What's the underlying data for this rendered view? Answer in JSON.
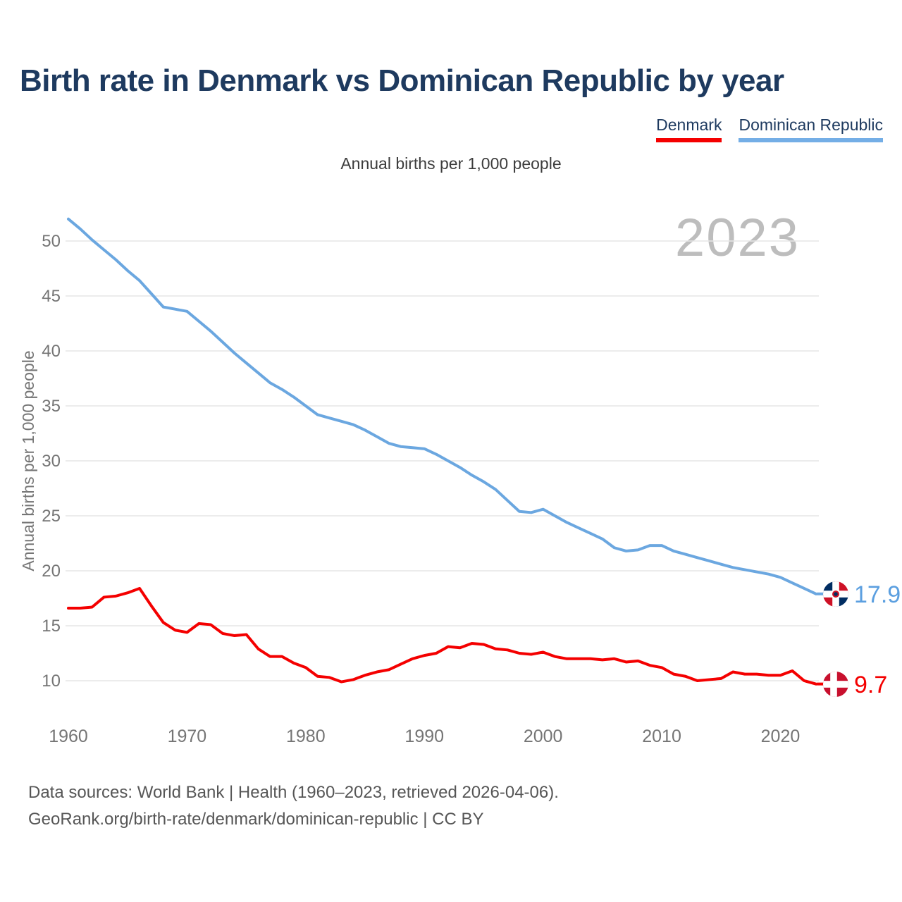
{
  "title": "Birth rate in Denmark vs Dominican Republic by year",
  "subtitle": "Annual births per 1,000 people",
  "watermark": "2023",
  "legend": {
    "denmark_label": "Denmark",
    "dominican_label": "Dominican Republic",
    "denmark_color": "#f40000",
    "dominican_color": "#74aee6"
  },
  "end_labels": {
    "dominican_value": "17.9",
    "denmark_value": "9.7",
    "dominican_color": "#5b9fe0",
    "denmark_color": "#f40000"
  },
  "footer": {
    "line1": "Data sources: World Bank | Health (1960–2023, retrieved 2026-04-06).",
    "line2": "GeoRank.org/birth-rate/denmark/dominican-republic | CC BY"
  },
  "chart_data": {
    "type": "line",
    "title": "Birth rate in Denmark vs Dominican Republic by year",
    "ylabel": "Annual births per 1,000 people",
    "xlabel": "",
    "grid": "horizontal-only",
    "legend_position": "top-right",
    "ylim": [
      8,
      53
    ],
    "xlim": [
      1960,
      2023
    ],
    "yticks": [
      10,
      15,
      20,
      25,
      30,
      35,
      40,
      45,
      50
    ],
    "xticks": [
      1960,
      1970,
      1980,
      1990,
      2000,
      2010,
      2020
    ],
    "gridline_color": "#e6e6e6",
    "tick_color": "#757575",
    "x": [
      1960,
      1961,
      1962,
      1963,
      1964,
      1965,
      1966,
      1967,
      1968,
      1969,
      1970,
      1971,
      1972,
      1973,
      1974,
      1975,
      1976,
      1977,
      1978,
      1979,
      1980,
      1981,
      1982,
      1983,
      1984,
      1985,
      1986,
      1987,
      1988,
      1989,
      1990,
      1991,
      1992,
      1993,
      1994,
      1995,
      1996,
      1997,
      1998,
      1999,
      2000,
      2001,
      2002,
      2003,
      2004,
      2005,
      2006,
      2007,
      2008,
      2009,
      2010,
      2011,
      2012,
      2013,
      2014,
      2015,
      2016,
      2017,
      2018,
      2019,
      2020,
      2021,
      2022,
      2023
    ],
    "series": [
      {
        "name": "Denmark",
        "color": "#f40000",
        "end_value_label": "9.7",
        "values": [
          16.6,
          16.6,
          16.7,
          17.6,
          17.7,
          18.0,
          18.4,
          16.8,
          15.3,
          14.6,
          14.4,
          15.2,
          15.1,
          14.3,
          14.1,
          14.2,
          12.9,
          12.2,
          12.2,
          11.6,
          11.2,
          10.4,
          10.3,
          9.9,
          10.1,
          10.5,
          10.8,
          11.0,
          11.5,
          12.0,
          12.3,
          12.5,
          13.1,
          13.0,
          13.4,
          13.3,
          12.9,
          12.8,
          12.5,
          12.4,
          12.6,
          12.2,
          12.0,
          12.0,
          12.0,
          11.9,
          12.0,
          11.7,
          11.8,
          11.4,
          11.2,
          10.6,
          10.4,
          10.0,
          10.1,
          10.2,
          10.8,
          10.6,
          10.6,
          10.5,
          10.5,
          10.9,
          10.0,
          9.7
        ]
      },
      {
        "name": "Dominican Republic",
        "color": "#6ba7e0",
        "end_value_label": "17.9",
        "values": [
          52.0,
          51.1,
          50.1,
          49.2,
          48.3,
          47.3,
          46.4,
          45.2,
          44.0,
          43.8,
          43.6,
          42.7,
          41.8,
          40.8,
          39.8,
          38.9,
          38.0,
          37.1,
          36.5,
          35.8,
          35.0,
          34.2,
          33.9,
          33.6,
          33.3,
          32.8,
          32.2,
          31.6,
          31.3,
          31.2,
          31.1,
          30.6,
          30.0,
          29.4,
          28.7,
          28.1,
          27.4,
          26.4,
          25.4,
          25.3,
          25.6,
          25.0,
          24.4,
          23.9,
          23.4,
          22.9,
          22.1,
          21.8,
          21.9,
          22.3,
          22.3,
          21.8,
          21.5,
          21.2,
          20.9,
          20.6,
          20.3,
          20.1,
          19.9,
          19.7,
          19.4,
          18.9,
          18.4,
          17.9
        ]
      }
    ]
  }
}
